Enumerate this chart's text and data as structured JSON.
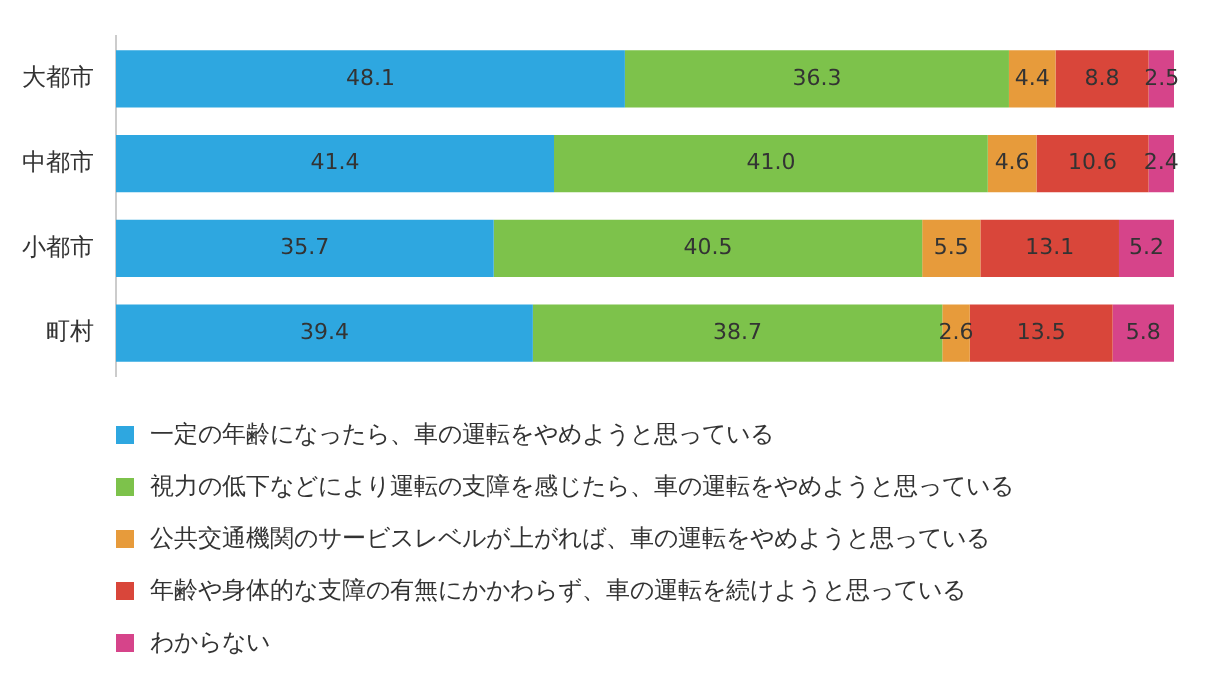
{
  "chart_data": {
    "type": "bar",
    "orientation": "horizontal",
    "stacked": true,
    "categories": [
      "大都市",
      "中都市",
      "小都市",
      "町村"
    ],
    "series": [
      {
        "name": "一定の年齢になったら、車の運転をやめようと思っている",
        "color": "#2ea7e0",
        "values": [
          48.1,
          41.4,
          35.7,
          39.4
        ],
        "value_labels": [
          "48.1",
          "41.4",
          "35.7",
          "39.4"
        ]
      },
      {
        "name": "視力の低下などにより運転の支障を感じたら、車の運転をやめようと思っている",
        "color": "#7dc24b",
        "values": [
          36.3,
          41.0,
          40.5,
          38.7
        ],
        "value_labels": [
          "36.3",
          "41.0",
          "40.5",
          "38.7"
        ]
      },
      {
        "name": "公共交通機関のサービスレベルが上がれば、車の運転をやめようと思っている",
        "color": "#e79b3b",
        "values": [
          4.4,
          4.6,
          5.5,
          2.6
        ],
        "value_labels": [
          "4.4",
          "4.6",
          "5.5",
          "2.6"
        ]
      },
      {
        "name": "年齢や身体的な支障の有無にかかわらず、車の運転を続けようと思っている",
        "color": "#d9463a",
        "values": [
          8.8,
          10.6,
          13.1,
          13.5
        ],
        "value_labels": [
          "8.8",
          "10.6",
          "13.1",
          "13.5"
        ]
      },
      {
        "name": "わからない",
        "color": "#d6448a",
        "values": [
          2.5,
          2.4,
          5.2,
          5.8
        ],
        "value_labels": [
          "2.5",
          "2.4",
          "5.2",
          "5.8"
        ]
      }
    ],
    "xlim": [
      0,
      100
    ],
    "tick_labels": "y",
    "legend": "bottom",
    "grid": false
  }
}
